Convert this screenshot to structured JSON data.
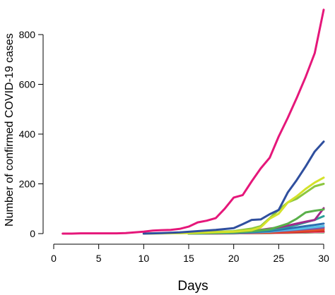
{
  "chart_data": {
    "type": "line",
    "title": "",
    "xlabel": "Days",
    "ylabel": "Number of confirmed COVID-19 cases",
    "xlim": [
      0,
      30
    ],
    "ylim": [
      0,
      900
    ],
    "xticks": [
      0,
      5,
      10,
      15,
      20,
      25,
      30
    ],
    "yticks": [
      0,
      200,
      400,
      600,
      800
    ],
    "xtick_labels": [
      "0",
      "5",
      "10",
      "15",
      "20",
      "25",
      "30"
    ],
    "ytick_labels": [
      "0",
      "200",
      "400",
      "600",
      "800"
    ],
    "grid": false,
    "legend": "none",
    "series": [
      {
        "color": "#e5177a",
        "x": [
          1,
          2,
          3,
          4,
          5,
          6,
          7,
          8,
          9,
          10,
          11,
          12,
          13,
          14,
          15,
          16,
          17,
          18,
          19,
          20,
          21,
          22,
          23,
          24,
          25,
          26,
          27,
          28,
          29,
          30
        ],
        "values": [
          0,
          0,
          1,
          1,
          1,
          1,
          1,
          2,
          5,
          8,
          12,
          14,
          15,
          19,
          28,
          45,
          52,
          62,
          100,
          145,
          155,
          210,
          262,
          305,
          390,
          465,
          545,
          630,
          725,
          900
        ]
      },
      {
        "color": "#2f4f9e",
        "x": [
          10,
          12,
          14,
          16,
          18,
          20,
          21,
          22,
          23,
          24,
          25,
          26,
          27,
          28,
          29,
          30
        ],
        "values": [
          0,
          2,
          5,
          10,
          15,
          22,
          38,
          55,
          57,
          78,
          95,
          165,
          215,
          270,
          330,
          370
        ]
      },
      {
        "color": "#d4e22a",
        "x": [
          10,
          15,
          20,
          22,
          23,
          24,
          25,
          26,
          27,
          28,
          29,
          30
        ],
        "values": [
          0,
          2,
          8,
          14,
          25,
          60,
          80,
          125,
          150,
          180,
          205,
          225
        ]
      },
      {
        "color": "#8cc63f",
        "x": [
          10,
          15,
          20,
          22,
          23,
          24,
          25,
          26,
          27,
          28,
          29,
          30
        ],
        "values": [
          0,
          3,
          10,
          20,
          30,
          62,
          95,
          125,
          140,
          165,
          190,
          200
        ]
      },
      {
        "color": "#5ab04a",
        "x": [
          15,
          20,
          22,
          24,
          25,
          26,
          27,
          28,
          29,
          30
        ],
        "values": [
          0,
          5,
          10,
          18,
          28,
          40,
          60,
          85,
          92,
          97
        ]
      },
      {
        "color": "#a02a8a",
        "x": [
          15,
          20,
          22,
          24,
          25,
          26,
          27,
          28,
          29,
          30
        ],
        "values": [
          0,
          5,
          10,
          20,
          25,
          32,
          40,
          48,
          55,
          102
        ]
      },
      {
        "color": "#2b9f98",
        "x": [
          15,
          20,
          22,
          24,
          25,
          26,
          27,
          28,
          29,
          30
        ],
        "values": [
          0,
          4,
          8,
          14,
          20,
          28,
          35,
          45,
          55,
          70
        ]
      },
      {
        "color": "#2b6fb0",
        "x": [
          15,
          20,
          22,
          24,
          25,
          26,
          27,
          28,
          29,
          30
        ],
        "values": [
          0,
          3,
          6,
          10,
          15,
          20,
          25,
          30,
          35,
          40
        ]
      },
      {
        "color": "#55c0e8",
        "x": [
          15,
          20,
          22,
          24,
          25,
          26,
          27,
          28,
          29,
          30
        ],
        "values": [
          0,
          2,
          5,
          8,
          12,
          15,
          18,
          22,
          26,
          30
        ]
      },
      {
        "color": "#7e57a6",
        "x": [
          15,
          20,
          22,
          24,
          25,
          26,
          27,
          28,
          29,
          30
        ],
        "values": [
          0,
          2,
          4,
          8,
          10,
          12,
          15,
          18,
          20,
          24
        ]
      },
      {
        "color": "#e8512a",
        "x": [
          15,
          20,
          22,
          24,
          25,
          26,
          27,
          28,
          29,
          30
        ],
        "values": [
          0,
          2,
          3,
          5,
          7,
          8,
          10,
          12,
          14,
          18
        ]
      },
      {
        "color": "#d12b2b",
        "x": [
          15,
          20,
          22,
          24,
          25,
          26,
          27,
          28,
          29,
          30
        ],
        "values": [
          0,
          1,
          2,
          3,
          4,
          5,
          6,
          8,
          9,
          10
        ]
      },
      {
        "color": "#f06ba8",
        "x": [
          15,
          20,
          22,
          24,
          25,
          26,
          27,
          28,
          29,
          30
        ],
        "values": [
          0,
          1,
          2,
          3,
          3,
          4,
          5,
          6,
          6,
          7
        ]
      },
      {
        "color": "#4aa54a",
        "x": [
          15,
          20,
          22,
          24,
          25,
          26,
          27,
          28,
          29,
          30
        ],
        "values": [
          0,
          1,
          2,
          2,
          3,
          3,
          4,
          4,
          5,
          5
        ]
      }
    ]
  }
}
